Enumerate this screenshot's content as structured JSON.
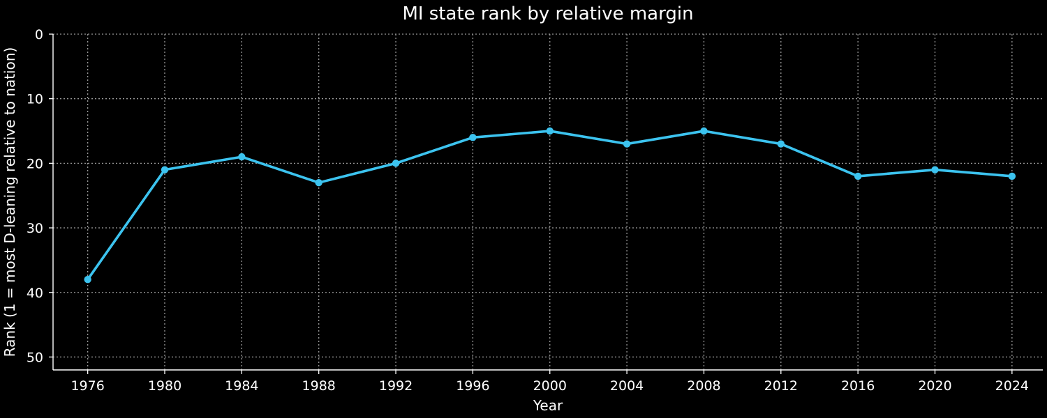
{
  "chart_data": {
    "type": "line",
    "title": "MI state rank by relative margin",
    "xlabel": "Year",
    "ylabel": "Rank (1 = most D-leaning relative to nation)",
    "x": [
      1976,
      1980,
      1984,
      1988,
      1992,
      1996,
      2000,
      2004,
      2008,
      2012,
      2016,
      2020,
      2024
    ],
    "series": [
      {
        "values": [
          38,
          21,
          19,
          23,
          20,
          16,
          15,
          17,
          15,
          17,
          22,
          21,
          22
        ]
      }
    ],
    "xticks": [
      "1976",
      "1980",
      "1984",
      "1988",
      "1992",
      "1996",
      "2000",
      "2004",
      "2008",
      "2012",
      "2016",
      "2020",
      "2024"
    ],
    "yticks": [
      "0",
      "10",
      "20",
      "30",
      "40",
      "50"
    ],
    "ylim": [
      0,
      52
    ],
    "y_inverted": true,
    "grid": true,
    "colors": {
      "background": "#000000",
      "line": "#3cc3ef",
      "text": "#ffffff",
      "grid": "#9a9a9a"
    }
  }
}
